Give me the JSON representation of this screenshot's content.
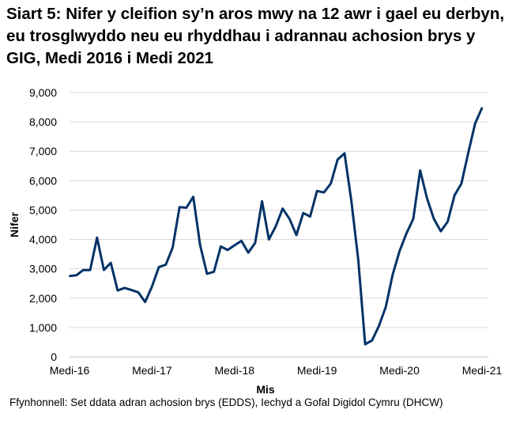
{
  "chart_data": {
    "type": "line",
    "title": "Siart 5: Nifer y cleifion sy’n aros mwy na 12 awr i gael eu derbyn, eu trosglwyddo neu eu rhyddhau i adrannau achosion brys y GIG, Medi 2016 i Medi 2021",
    "xlabel": "Mis",
    "ylabel": "Nifer",
    "ylim": [
      0,
      9000
    ],
    "yticks": [
      "0",
      "1,000",
      "2,000",
      "3,000",
      "4,000",
      "5,000",
      "6,000",
      "7,000",
      "8,000",
      "9,000"
    ],
    "xtick_labels": [
      "Medi-16",
      "Medi-17",
      "Medi-18",
      "Medi-19",
      "Medi-20",
      "Medi-21"
    ],
    "x_start": "2016-09",
    "x_end": "2021-09",
    "grid": "horizontal",
    "line_color": "#003366",
    "values": [
      2750,
      2780,
      2960,
      2960,
      4060,
      2960,
      3200,
      2260,
      2350,
      2280,
      2200,
      1870,
      2400,
      3060,
      3140,
      3720,
      5100,
      5080,
      5450,
      3800,
      2830,
      2900,
      3760,
      3640,
      3800,
      3950,
      3550,
      3880,
      5300,
      4000,
      4450,
      5050,
      4700,
      4150,
      4900,
      4780,
      5650,
      5600,
      5900,
      6720,
      6930,
      5300,
      3300,
      430,
      560,
      1050,
      1700,
      2800,
      3600,
      4200,
      4700,
      6350,
      5400,
      4700,
      4280,
      4600,
      5500,
      5900,
      6950,
      7950,
      8480
    ]
  },
  "source": "Ffynhonnell: Set ddata adran achosion brys (EDDS), Iechyd a Gofal Digidol Cymru (DHCW)"
}
